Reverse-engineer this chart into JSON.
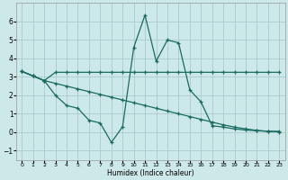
{
  "xlabel": "Humidex (Indice chaleur)",
  "bg_color": "#cce8e8",
  "grid_color": "#aacccc",
  "line_color": "#1a6b60",
  "xlim_min": -0.5,
  "xlim_max": 23.5,
  "ylim_min": -1.5,
  "ylim_max": 7.0,
  "yticks": [
    -1,
    0,
    1,
    2,
    3,
    4,
    5,
    6
  ],
  "xtick_labels": [
    "0",
    "1",
    "2",
    "3",
    "4",
    "5",
    "6",
    "7",
    "8",
    "9",
    "10",
    "11",
    "12",
    "13",
    "14",
    "15",
    "16",
    "17",
    "18",
    "19",
    "20",
    "21",
    "22",
    "23"
  ],
  "line1_x": [
    0,
    1,
    2,
    3,
    4,
    5,
    6,
    7,
    8,
    9,
    10,
    11,
    12,
    13,
    14,
    15,
    16,
    17,
    18,
    19,
    20,
    21,
    22,
    23
  ],
  "line1_y": [
    3.3,
    3.05,
    2.8,
    2.65,
    2.5,
    2.35,
    2.2,
    2.05,
    1.9,
    1.75,
    1.6,
    1.45,
    1.3,
    1.15,
    1.0,
    0.85,
    0.7,
    0.55,
    0.4,
    0.28,
    0.18,
    0.1,
    0.05,
    0.02
  ],
  "line2_x": [
    0,
    1,
    2,
    3,
    4,
    5,
    6,
    7,
    8,
    9,
    10,
    11,
    12,
    13,
    14,
    15,
    16,
    17,
    18,
    19,
    20,
    21,
    22,
    23
  ],
  "line2_y": [
    3.3,
    3.05,
    2.8,
    3.25,
    3.25,
    3.25,
    3.25,
    3.25,
    3.25,
    3.25,
    3.25,
    3.25,
    3.25,
    3.25,
    3.25,
    3.25,
    3.25,
    3.25,
    3.25,
    3.25,
    3.25,
    3.25,
    3.25,
    3.25
  ],
  "line3_x": [
    0,
    1,
    2,
    3,
    4,
    5,
    6,
    7,
    8,
    9,
    10,
    11,
    12,
    13,
    14,
    15,
    16,
    17,
    18,
    19,
    20,
    21,
    22,
    23
  ],
  "line3_y": [
    3.3,
    3.05,
    2.8,
    2.0,
    1.45,
    1.3,
    0.65,
    0.5,
    -0.55,
    0.3,
    4.6,
    6.35,
    3.85,
    5.0,
    4.85,
    2.3,
    1.65,
    0.35,
    0.28,
    0.18,
    0.12,
    0.08,
    0.05,
    0.05
  ]
}
